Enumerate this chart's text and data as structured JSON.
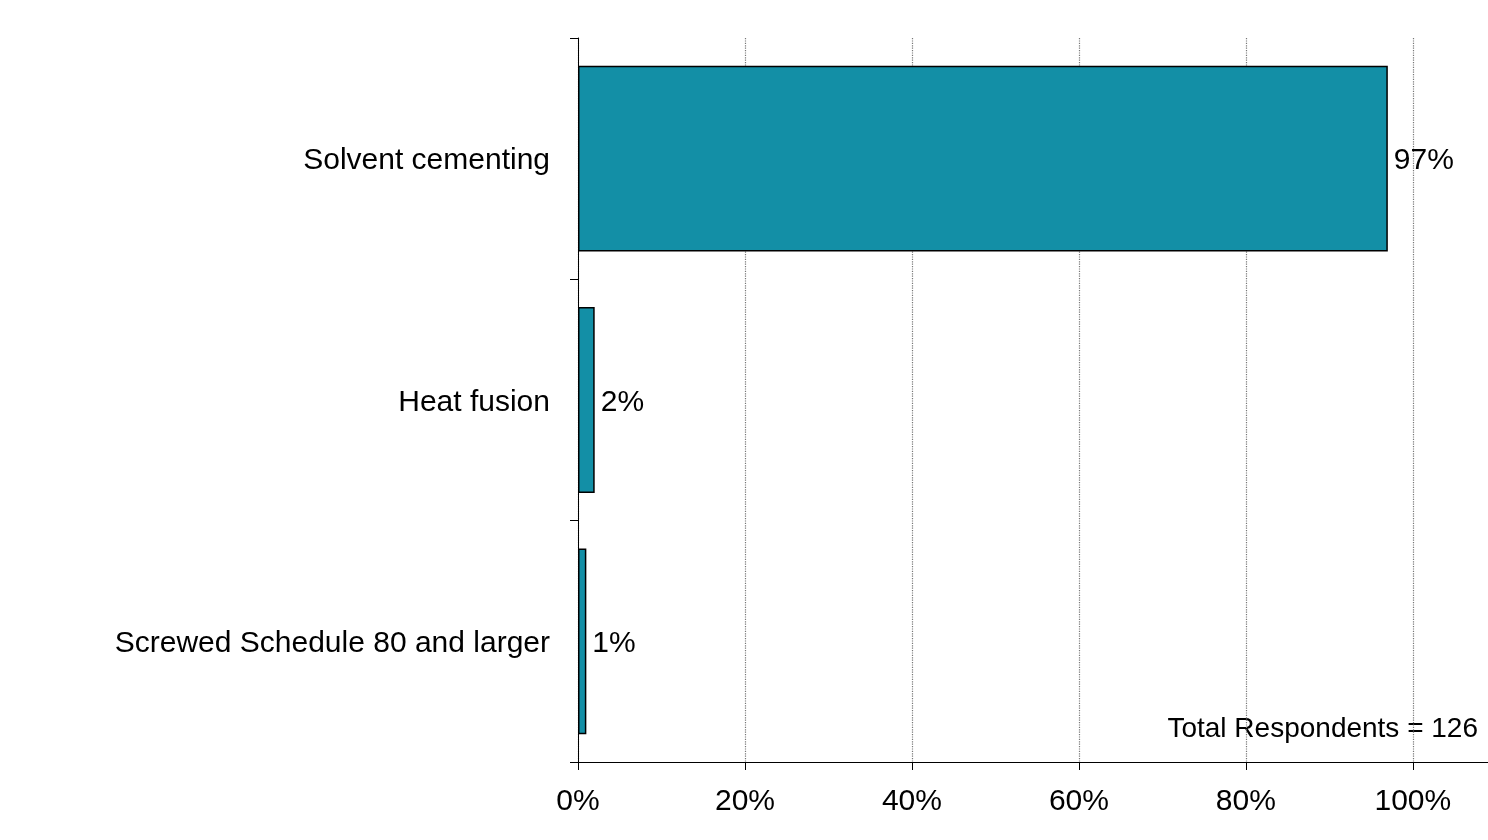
{
  "chart_data": {
    "type": "bar",
    "orientation": "horizontal",
    "categories": [
      "Solvent cementing",
      "Heat fusion",
      "Screwed Schedule 80 and larger"
    ],
    "values": [
      97,
      2,
      1
    ],
    "value_labels": [
      "97%",
      "2%",
      "1%"
    ],
    "color": "#138fa6",
    "xlim": [
      0,
      109
    ],
    "xticks": [
      {
        "value": 0,
        "label": "0%"
      },
      {
        "value": 20,
        "label": "20%"
      },
      {
        "value": 40,
        "label": "40%"
      },
      {
        "value": 60,
        "label": "60%"
      },
      {
        "value": 80,
        "label": "80%"
      },
      {
        "value": 100,
        "label": "100%"
      }
    ],
    "grid": "x",
    "annotations": [
      "Total Respondents = 126"
    ]
  }
}
